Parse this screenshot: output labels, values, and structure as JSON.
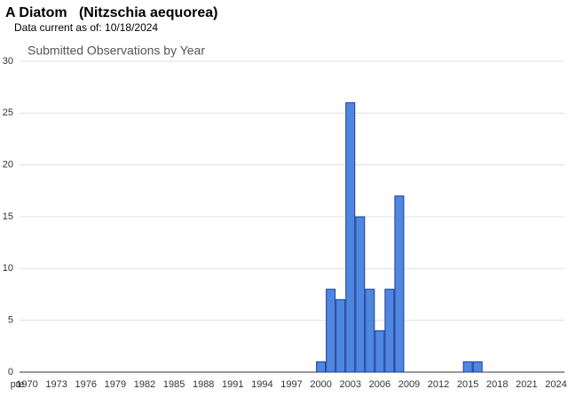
{
  "header": {
    "title": "A Diatom   (Nitzschia aequorea)",
    "subtitle": "Data current as of: 10/18/2024"
  },
  "chart_data": {
    "type": "bar",
    "title": "Submitted Observations by Year",
    "categories": [
      "pre",
      "1970",
      null,
      null,
      "1973",
      null,
      null,
      "1976",
      null,
      null,
      "1979",
      null,
      null,
      "1982",
      null,
      null,
      "1985",
      null,
      null,
      "1988",
      null,
      null,
      "1991",
      null,
      null,
      "1994",
      null,
      null,
      "1997",
      null,
      null,
      "2000",
      null,
      null,
      "2003",
      null,
      null,
      "2006",
      null,
      null,
      "2009",
      null,
      null,
      "2012",
      null,
      null,
      "2015",
      null,
      null,
      "2018",
      null,
      null,
      "2021",
      null,
      null,
      "2024"
    ],
    "values": [
      0,
      0,
      0,
      0,
      0,
      0,
      0,
      0,
      0,
      0,
      0,
      0,
      0,
      0,
      0,
      0,
      0,
      0,
      0,
      0,
      0,
      0,
      0,
      0,
      0,
      0,
      0,
      0,
      0,
      0,
      0,
      1,
      8,
      7,
      26,
      15,
      8,
      4,
      8,
      17,
      0,
      0,
      0,
      0,
      0,
      0,
      1,
      1,
      0,
      0,
      0,
      0,
      0,
      0,
      0,
      0
    ],
    "color": "#4f86e0",
    "ylim": [
      0,
      30
    ],
    "yticks": [
      0,
      5,
      10,
      15,
      20,
      25,
      30
    ],
    "grid": true
  }
}
